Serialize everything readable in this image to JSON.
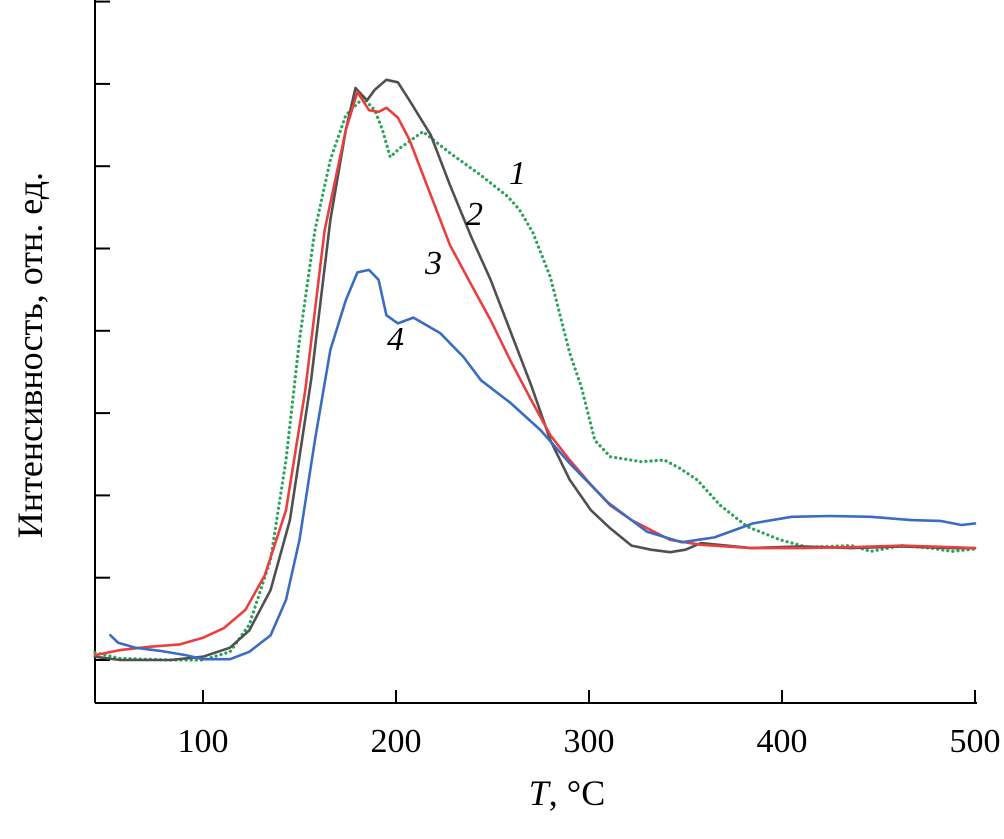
{
  "chart_data": {
    "type": "line",
    "title": "",
    "xlabel_var": "T",
    "xlabel_unit": ", °C",
    "ylabel": "Интенсивность, отн. ед.",
    "xlim": [
      44,
      500
    ],
    "ylim": [
      -0.5,
      8
    ],
    "xticks": [
      100,
      200,
      300,
      400,
      500
    ],
    "yticks_unlabeled": [
      0,
      1,
      2,
      3,
      4,
      5,
      6,
      7,
      8
    ],
    "grid": false,
    "legend": "none (curves numbered inline)",
    "series": [
      {
        "name": "1",
        "color": "#2ba35a",
        "style": "dotted",
        "x": [
          44,
          57,
          83,
          100,
          114,
          124,
          135,
          143,
          150,
          158,
          166,
          174,
          183,
          189,
          193,
          197,
          202,
          214,
          228,
          244,
          258,
          264,
          271,
          280,
          290,
          296,
          303,
          311,
          327,
          339,
          347,
          356,
          368,
          382,
          399,
          413,
          436,
          446,
          462,
          477,
          488,
          500
        ],
        "y": [
          0.09,
          0.02,
          0,
          0,
          0.1,
          0.43,
          1.22,
          2.43,
          3.89,
          5.22,
          6.08,
          6.62,
          6.83,
          6.68,
          6.44,
          6.11,
          6.22,
          6.42,
          6.16,
          5.89,
          5.63,
          5.47,
          5.19,
          4.65,
          3.73,
          3.32,
          2.67,
          2.47,
          2.41,
          2.43,
          2.33,
          2.19,
          1.88,
          1.62,
          1.46,
          1.37,
          1.39,
          1.32,
          1.39,
          1.36,
          1.32,
          1.35
        ]
      },
      {
        "name": "2",
        "color": "#505050",
        "style": "solid",
        "x": [
          44,
          57,
          83,
          100,
          114,
          124,
          135,
          145,
          156,
          166,
          174,
          179,
          185,
          189,
          195,
          201,
          207,
          218,
          228,
          239,
          249,
          259,
          270,
          280,
          290,
          301,
          311,
          322,
          332,
          342,
          350,
          358,
          384,
          410,
          436,
          462,
          488,
          500
        ],
        "y": [
          0.04,
          0,
          0,
          0.04,
          0.15,
          0.36,
          0.85,
          1.7,
          3.4,
          5.35,
          6.44,
          6.95,
          6.8,
          6.93,
          7.05,
          7.02,
          6.8,
          6.38,
          5.77,
          5.14,
          4.62,
          4.01,
          3.34,
          2.67,
          2.19,
          1.82,
          1.6,
          1.39,
          1.34,
          1.31,
          1.34,
          1.42,
          1.36,
          1.38,
          1.36,
          1.38,
          1.36,
          1.36
        ]
      },
      {
        "name": "3",
        "color": "#e8403e",
        "style": "solid",
        "x": [
          44,
          57,
          72,
          88,
          100,
          111,
          122,
          132,
          143,
          153,
          163,
          174,
          180,
          186,
          191,
          195,
          201,
          207,
          218,
          228,
          239,
          249,
          259,
          270,
          280,
          290,
          301,
          311,
          322,
          332,
          342,
          358,
          384,
          410,
          436,
          462,
          488,
          500
        ],
        "y": [
          0.06,
          0.12,
          0.16,
          0.19,
          0.27,
          0.39,
          0.61,
          1.03,
          1.82,
          3.28,
          5.22,
          6.44,
          6.9,
          6.68,
          6.66,
          6.71,
          6.59,
          6.32,
          5.65,
          5.04,
          4.56,
          4.13,
          3.65,
          3.16,
          2.73,
          2.43,
          2.13,
          1.88,
          1.7,
          1.58,
          1.46,
          1.4,
          1.36,
          1.36,
          1.37,
          1.39,
          1.37,
          1.36
        ]
      },
      {
        "name": "4",
        "color": "#3a6cc2",
        "style": "solid",
        "x": [
          52,
          56,
          65,
          78,
          91,
          100,
          114,
          124,
          135,
          143,
          150,
          158,
          166,
          174,
          180,
          186,
          191,
          195,
          201,
          209,
          223,
          235,
          244,
          259,
          275,
          290,
          310,
          330,
          348,
          365,
          385,
          405,
          425,
          446,
          467,
          482,
          493,
          500
        ],
        "y": [
          0.3,
          0.21,
          0.15,
          0.11,
          0.06,
          0.01,
          0.01,
          0.1,
          0.3,
          0.73,
          1.46,
          2.67,
          3.77,
          4.37,
          4.71,
          4.74,
          4.62,
          4.19,
          4.09,
          4.16,
          3.97,
          3.68,
          3.4,
          3.13,
          2.79,
          2.39,
          1.91,
          1.56,
          1.43,
          1.49,
          1.66,
          1.74,
          1.75,
          1.74,
          1.7,
          1.69,
          1.64,
          1.66
        ]
      }
    ]
  }
}
